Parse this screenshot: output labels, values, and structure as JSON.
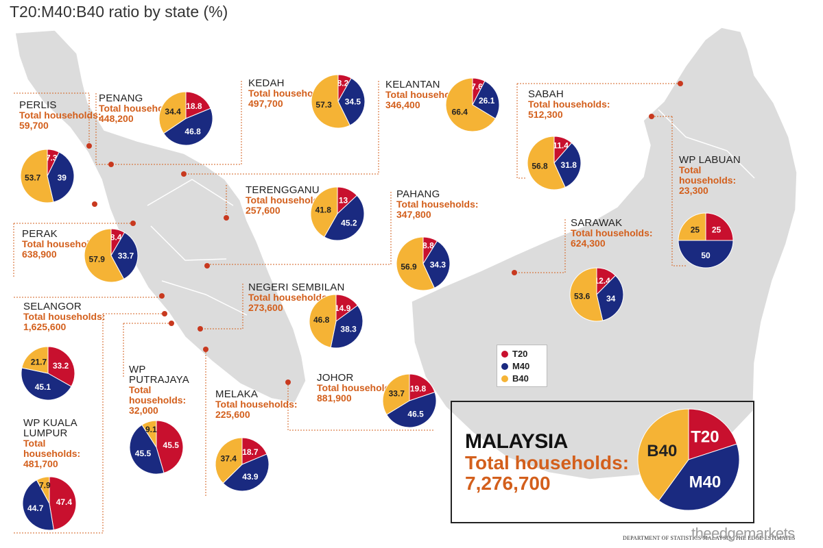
{
  "title": "T20:M40:B40 ratio by state (%)",
  "total_label": "Total households:",
  "colors": {
    "T20": "#c8102e",
    "M40": "#1a2a80",
    "B40": "#f5b335",
    "leader": "#d35f1c",
    "land": "#dcdcdc"
  },
  "legend": [
    {
      "key": "T20",
      "label": "T20",
      "color": "#c8102e"
    },
    {
      "key": "M40",
      "label": "M40",
      "color": "#1a2a80"
    },
    {
      "key": "B40",
      "label": "B40",
      "color": "#f5b335"
    }
  ],
  "national": {
    "name": "MALAYSIA",
    "households_label": "Total households:",
    "households": "7,276,700"
  },
  "source": "DEPARTMENT OF STATISTICS MALAYSIA, THE EDGE ESTIMATES",
  "brand": "theedgemarkets",
  "chart_data": {
    "type": "pie",
    "title": "T20:M40:B40 ratio by state (%)",
    "categories": [
      "T20",
      "M40",
      "B40"
    ],
    "pies": [
      {
        "state": "PERLIS",
        "households": "59,700",
        "values": [
          7.3,
          39,
          53.7
        ],
        "value_labels": [
          "7.3",
          "39",
          "53.7"
        ]
      },
      {
        "state": "PENANG",
        "households": "448,200",
        "values": [
          18.8,
          46.8,
          34.4
        ],
        "value_labels": [
          "18.8",
          "46.8",
          "34.4"
        ]
      },
      {
        "state": "KEDAH",
        "households": "497,700",
        "values": [
          8.2,
          34.5,
          57.3
        ],
        "value_labels": [
          "8.2",
          "34.5",
          "57.3"
        ]
      },
      {
        "state": "KELANTAN",
        "households": "346,400",
        "values": [
          7.6,
          26.1,
          66.4
        ],
        "value_labels": [
          "7.6",
          "26.1",
          "66.4"
        ]
      },
      {
        "state": "SABAH",
        "households": "512,300",
        "values": [
          11.4,
          31.8,
          56.8
        ],
        "value_labels": [
          "11.4",
          "31.8",
          "56.8"
        ]
      },
      {
        "state": "TERENGGANU",
        "households": "257,600",
        "values": [
          13,
          45.2,
          41.8
        ],
        "value_labels": [
          "13",
          "45.2",
          "41.8"
        ]
      },
      {
        "state": "PAHANG",
        "households": "347,800",
        "values": [
          8.8,
          34.3,
          56.9
        ],
        "value_labels": [
          "8.8",
          "34.3",
          "56.9"
        ]
      },
      {
        "state": "WP LABUAN",
        "households": "23,300",
        "values": [
          25,
          50,
          25
        ],
        "value_labels": [
          "25",
          "50",
          "25"
        ]
      },
      {
        "state": "PERAK",
        "households": "638,900",
        "values": [
          8.4,
          33.7,
          57.9
        ],
        "value_labels": [
          "8.4",
          "33.7",
          "57.9"
        ]
      },
      {
        "state": "SARAWAK",
        "households": "624,300",
        "values": [
          12.4,
          34,
          53.6
        ],
        "value_labels": [
          "12.4",
          "34",
          "53.6"
        ]
      },
      {
        "state": "SELANGOR",
        "households": "1,625,600",
        "values": [
          33.2,
          45.1,
          21.7
        ],
        "value_labels": [
          "33.2",
          "45.1",
          "21.7"
        ]
      },
      {
        "state": "NEGERI SEMBILAN",
        "households": "273,600",
        "values": [
          14.9,
          38.3,
          46.8
        ],
        "value_labels": [
          "14.9",
          "38.3",
          "46.8"
        ]
      },
      {
        "state": "JOHOR",
        "households": "881,900",
        "values": [
          19.8,
          46.5,
          33.7
        ],
        "value_labels": [
          "19.8",
          "46.5",
          "33.7"
        ]
      },
      {
        "state": "WP PUTRAJAYA",
        "households": "32,000",
        "values": [
          45.5,
          45.5,
          9.1
        ],
        "value_labels": [
          "45.5",
          "45.5",
          "9.1"
        ]
      },
      {
        "state": "MELAKA",
        "households": "225,600",
        "values": [
          18.7,
          43.9,
          37.4
        ],
        "value_labels": [
          "18.7",
          "43.9",
          "37.4"
        ]
      },
      {
        "state": "WP KUALA LUMPUR",
        "households": "481,700",
        "values": [
          47.4,
          44.7,
          7.9
        ],
        "value_labels": [
          "47.4",
          "44.7",
          "7.9"
        ]
      },
      {
        "state": "MALAYSIA",
        "households": "7,276,700",
        "values": [
          20,
          40,
          40
        ],
        "value_labels": [
          "T20",
          "M40",
          "B40"
        ]
      }
    ]
  }
}
